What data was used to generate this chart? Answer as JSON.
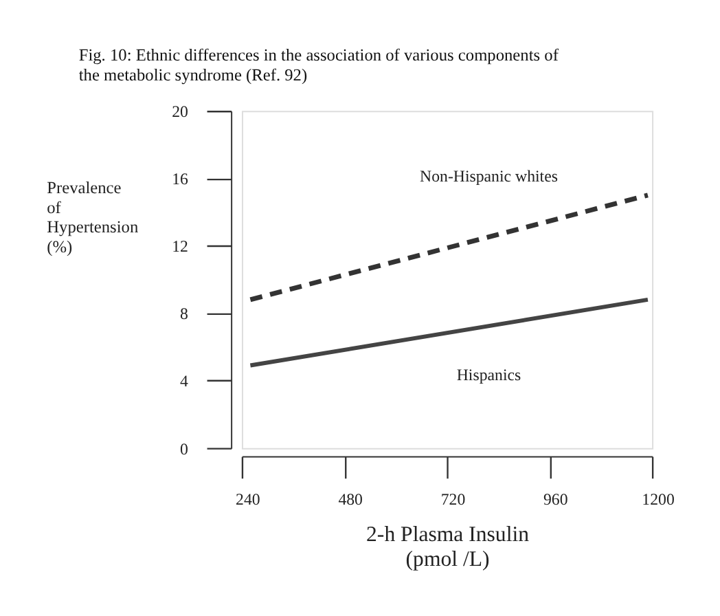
{
  "chart_data": {
    "type": "line",
    "title": "Fig. 10: Ethnic differences in the association of various components of the metabolic syndrome (Ref. 92)",
    "xlabel": "2-h Plasma Insulin (pmol /L)",
    "ylabel": "Prevalence of Hypertension (%)",
    "x": [
      260,
      1190
    ],
    "series": [
      {
        "name": "Non-Hispanic whites",
        "color": "#333333",
        "values": [
          8.8,
          15.0
        ],
        "line_style": "dashed"
      },
      {
        "name": "Hispanics",
        "color": "#444444",
        "values": [
          4.9,
          8.8
        ],
        "line_style": "solid"
      }
    ],
    "xlim": [
      240,
      1200
    ],
    "ylim": [
      0,
      20
    ],
    "xticks": [
      240,
      480,
      720,
      960,
      1200
    ],
    "yticks": [
      0,
      4,
      8,
      12,
      16,
      20
    ],
    "grid": false,
    "marker": "none"
  }
}
